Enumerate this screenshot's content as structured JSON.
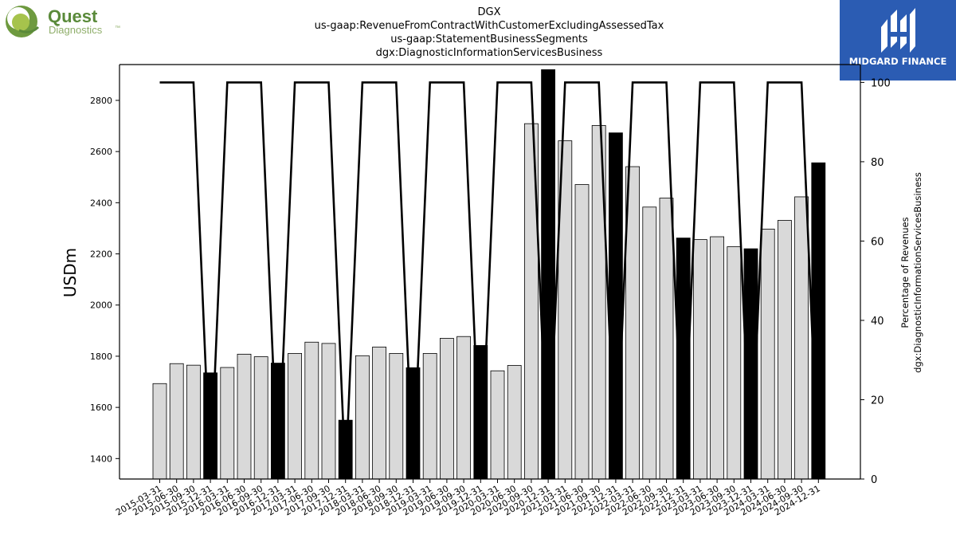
{
  "branding": {
    "company_logo": {
      "name": "Quest",
      "sub": "Diagnostics",
      "mark": "™",
      "color": "#5a8a3a"
    },
    "watermark": {
      "text": "MIDGARD FINANCE",
      "bg": "#2b5cb3"
    }
  },
  "chart_data": {
    "type": "bar",
    "title": [
      "DGX",
      "us-gaap:RevenueFromContractWithCustomerExcludingAssessedTax",
      "us-gaap:StatementBusinessSegments",
      "dgx:DiagnosticInformationServicesBusiness"
    ],
    "ylabel": "USDm",
    "y2label": [
      "Percentage of Revenues",
      "dgx:DiagnosticInformationServicesBusiness"
    ],
    "ylim": [
      1320,
      2940
    ],
    "y2lim": [
      0,
      104.5
    ],
    "yticks": [
      1400,
      1600,
      1800,
      2000,
      2200,
      2400,
      2600,
      2800
    ],
    "y2ticks": [
      0,
      20,
      40,
      60,
      80,
      100
    ],
    "categories": [
      "2015-03-31",
      "2015-06-30",
      "2015-09-30",
      "2015-12-31",
      "2016-03-31",
      "2016-06-30",
      "2016-09-30",
      "2016-12-31",
      "2017-03-31",
      "2017-06-30",
      "2017-09-30",
      "2017-12-31",
      "2018-03-31",
      "2018-06-30",
      "2018-09-30",
      "2018-12-31",
      "2019-03-31",
      "2019-06-30",
      "2019-09-30",
      "2019-12-31",
      "2020-03-31",
      "2020-06-30",
      "2020-09-30",
      "2020-12-31",
      "2021-03-31",
      "2021-06-30",
      "2021-09-30",
      "2021-12-31",
      "2022-03-31",
      "2022-06-30",
      "2022-09-30",
      "2022-12-31",
      "2023-03-31",
      "2023-06-30",
      "2023-09-30",
      "2023-12-31",
      "2024-03-31",
      "2024-06-30",
      "2024-09-30",
      "2024-12-31"
    ],
    "series": [
      {
        "type": "bar",
        "axis": "left",
        "values": [
          1693,
          1771,
          1765,
          1735,
          1756,
          1808,
          1798,
          1773,
          1811,
          1855,
          1850,
          1550,
          1802,
          1836,
          1811,
          1755,
          1811,
          1870,
          1877,
          1842,
          1743,
          1764,
          2709,
          2920,
          2642,
          2471,
          2702,
          2673,
          2541,
          2383,
          2418,
          2262,
          2256,
          2267,
          2228,
          2220,
          2297,
          2331,
          2423,
          2556
        ],
        "colors": {
          "normal": "#d9d9d9",
          "year_end": "#000000",
          "edge": "#000000"
        }
      },
      {
        "type": "line",
        "axis": "right",
        "values": [
          100,
          100,
          100,
          0,
          100,
          100,
          100,
          0,
          100,
          100,
          100,
          0,
          100,
          100,
          100,
          0,
          100,
          100,
          100,
          0,
          100,
          100,
          100,
          0,
          100,
          100,
          100,
          0,
          100,
          100,
          100,
          0,
          100,
          100,
          100,
          0,
          100,
          100,
          100,
          0
        ],
        "color": "#000000"
      }
    ],
    "grid": false
  }
}
